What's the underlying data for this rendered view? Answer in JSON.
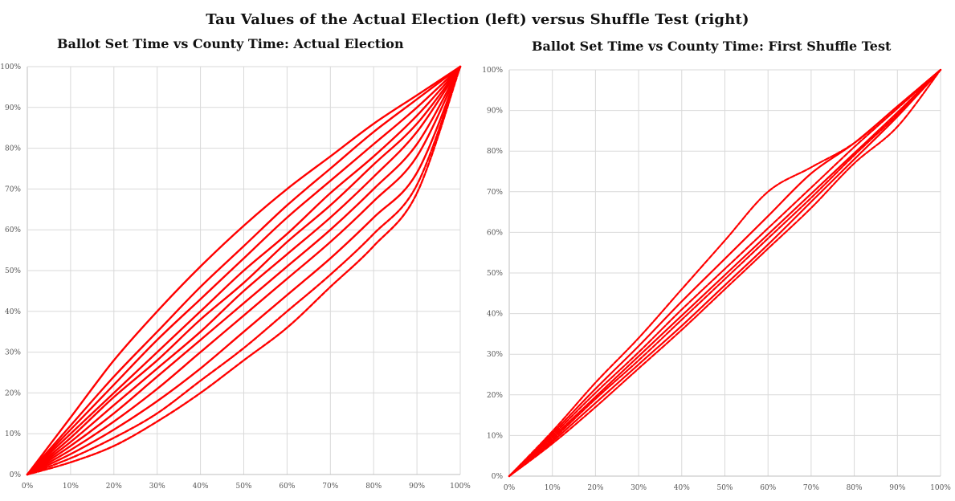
{
  "title": "Tau Values of the Actual Election (left) versus Shuffle Test (right)",
  "colors": {
    "series": "#ff0000",
    "grid": "#d9d9d9",
    "axis": "#bfbfbf"
  },
  "chart_data": [
    {
      "type": "line",
      "title": "Ballot Set Time vs County Time: Actual Election",
      "xlabel": "",
      "ylabel": "",
      "xlim": [
        0,
        100
      ],
      "ylim": [
        0,
        100
      ],
      "grid": true,
      "legend": "none",
      "x_ticks": [
        "0%",
        "10%",
        "20%",
        "30%",
        "40%",
        "50%",
        "60%",
        "70%",
        "80%",
        "90%",
        "100%"
      ],
      "y_ticks": [
        "0%",
        "10%",
        "20%",
        "30%",
        "40%",
        "50%",
        "60%",
        "70%",
        "80%",
        "90%",
        "100%"
      ],
      "x": [
        0,
        10,
        20,
        30,
        40,
        50,
        60,
        70,
        80,
        90,
        100
      ],
      "series": [
        {
          "values": [
            0,
            14,
            28,
            40,
            51,
            61,
            70,
            78,
            86,
            93,
            100
          ]
        },
        {
          "values": [
            0,
            12,
            24,
            35,
            46,
            56,
            66,
            75,
            84,
            92,
            100
          ]
        },
        {
          "values": [
            0,
            11,
            22,
            33,
            43,
            53,
            63,
            72,
            81,
            90,
            100
          ]
        },
        {
          "values": [
            0,
            10,
            20,
            30,
            40,
            50,
            59,
            69,
            78,
            88,
            100
          ]
        },
        {
          "values": [
            0,
            9,
            19,
            28,
            38,
            47,
            57,
            66,
            76,
            86,
            100
          ]
        },
        {
          "values": [
            0,
            8,
            17,
            26,
            35,
            45,
            54,
            63,
            73,
            84,
            100
          ]
        },
        {
          "values": [
            0,
            7,
            15,
            24,
            33,
            42,
            51,
            60,
            70,
            81,
            100
          ]
        },
        {
          "values": [
            0,
            6,
            13,
            21,
            30,
            39,
            48,
            57,
            67,
            78,
            100
          ]
        },
        {
          "values": [
            0,
            5,
            11,
            18,
            26,
            35,
            44,
            53,
            63,
            74,
            100
          ]
        },
        {
          "values": [
            0,
            4,
            9,
            15,
            23,
            31,
            40,
            49,
            59,
            71,
            100
          ]
        },
        {
          "values": [
            0,
            3,
            7,
            13,
            20,
            28,
            36,
            46,
            56,
            69,
            100
          ]
        }
      ]
    },
    {
      "type": "line",
      "title": "Ballot Set Time vs County Time: First Shuffle Test",
      "xlabel": "",
      "ylabel": "",
      "xlim": [
        0,
        100
      ],
      "ylim": [
        0,
        100
      ],
      "grid": true,
      "legend": "none",
      "x_ticks": [
        "0%",
        "10%",
        "20%",
        "30%",
        "40%",
        "50%",
        "60%",
        "70%",
        "80%",
        "90%",
        "100%"
      ],
      "y_ticks": [
        "0%",
        "10%",
        "20%",
        "30%",
        "40%",
        "50%",
        "60%",
        "70%",
        "80%",
        "90%",
        "100%"
      ],
      "x": [
        0,
        10,
        20,
        30,
        40,
        50,
        60,
        70,
        80,
        90,
        100
      ],
      "series": [
        {
          "values": [
            0,
            11,
            23,
            34,
            46,
            58,
            70,
            76,
            82,
            91,
            100
          ]
        },
        {
          "values": [
            0,
            10.5,
            21.5,
            32,
            43,
            53.5,
            64,
            74.5,
            82,
            91,
            100
          ]
        },
        {
          "values": [
            0,
            10,
            20.5,
            30.5,
            41,
            51,
            61,
            71,
            81,
            90.5,
            100
          ]
        },
        {
          "values": [
            0,
            9.5,
            19.5,
            29.5,
            39.5,
            49.5,
            59.5,
            69.5,
            79.5,
            89.5,
            100
          ]
        },
        {
          "values": [
            0,
            9,
            19,
            28.5,
            38.5,
            48.5,
            58.5,
            68.5,
            79,
            89,
            100
          ]
        },
        {
          "values": [
            0,
            8.5,
            18,
            27.5,
            37,
            47,
            57,
            67.5,
            78,
            88.5,
            100
          ]
        },
        {
          "values": [
            0,
            8,
            17,
            26.5,
            36,
            46,
            56,
            66,
            77,
            86,
            100
          ]
        }
      ]
    }
  ]
}
